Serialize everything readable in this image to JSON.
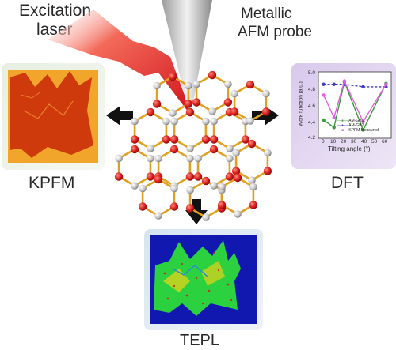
{
  "labels": {
    "excitation_line1": "Excitation",
    "excitation_line2": "laser",
    "probe_line1": "Metallic",
    "probe_line2": "AFM probe",
    "kpfm": "KPFM",
    "dft": "DFT",
    "tepl": "TEPL"
  },
  "dft_plot": {
    "ylabel": "Work function (a.u.)",
    "xlabel": "Tilting angle (°)",
    "x_ticks": [
      "0",
      "10",
      "20",
      "30",
      "40",
      "50",
      "60"
    ],
    "y_ticks": [
      "4.2",
      "4.4",
      "4.6",
      "4.8",
      "5.0"
    ],
    "legend": [
      "AM-GB1",
      "AM-GB2",
      "KPFM Measured"
    ]
  },
  "chart_data": {
    "type": "line",
    "xlim": [
      -5,
      65
    ],
    "ylim": [
      4.2,
      5.0
    ],
    "series": [
      {
        "name": "AM-GB1",
        "color": "#3a9a3a",
        "x": [
          0,
          10,
          20,
          38,
          60
        ],
        "y": [
          4.42,
          4.33,
          4.88,
          4.3,
          4.86
        ]
      },
      {
        "name": "AM-GB2",
        "color": "#3d3dbf",
        "x": [
          0,
          10,
          20,
          38,
          60
        ],
        "y": [
          4.85,
          4.85,
          4.85,
          4.82,
          4.82
        ]
      },
      {
        "name": "KPFM Measured",
        "color": "#e060e0",
        "x": [
          0,
          10,
          20,
          38,
          60
        ],
        "y": [
          4.72,
          4.45,
          4.89,
          4.4,
          4.85
        ]
      }
    ]
  },
  "colors": {
    "laser": "#e8201c",
    "bond": "#e0a020",
    "atom_red": "#d81e1e",
    "atom_gray": "#c8c8c8"
  }
}
